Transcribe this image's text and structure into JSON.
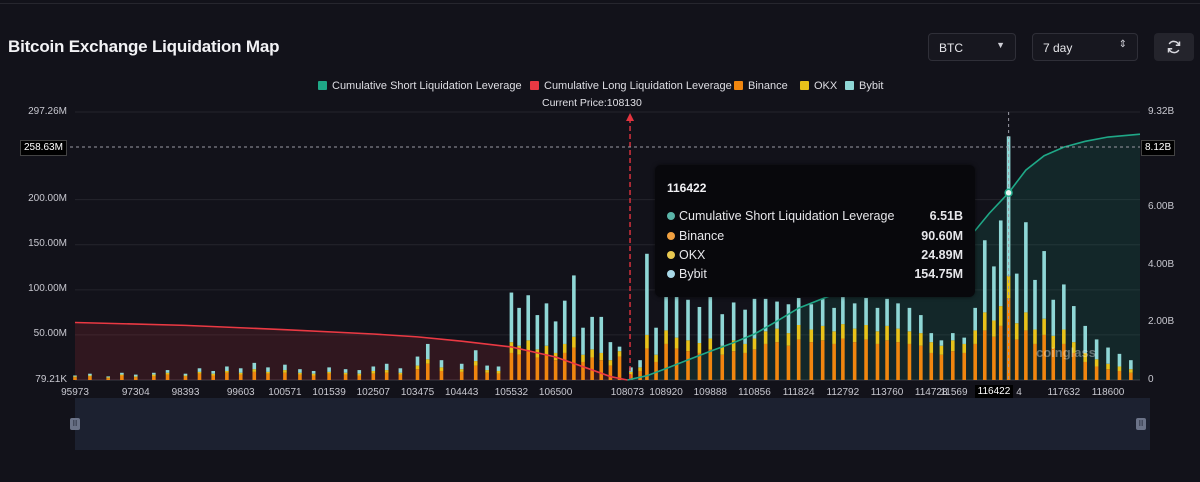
{
  "header": {
    "title": "Bitcoin Exchange Liquidation Map",
    "symbol_select": "BTC",
    "range_select": "7 day"
  },
  "legend": [
    {
      "label": "Cumulative Short Liquidation Leverage",
      "color": "#1fa887"
    },
    {
      "label": "Cumulative Long Liquidation Leverage",
      "color": "#ea3943"
    },
    {
      "label": "Binance",
      "color": "#f0860f"
    },
    {
      "label": "OKX",
      "color": "#e8c21a"
    },
    {
      "label": "Bybit",
      "color": "#8fd7d6"
    }
  ],
  "current_price_label": "Current Price:108130",
  "tooltip": {
    "title": "116422",
    "rows": [
      {
        "label": "Cumulative Short Liquidation Leverage",
        "value": "6.51B",
        "color": "#5ab4a8"
      },
      {
        "label": "Binance",
        "value": "90.60M",
        "color": "#f0a040"
      },
      {
        "label": "OKX",
        "value": "24.89M",
        "color": "#e8c850"
      },
      {
        "label": "Bybit",
        "value": "154.75M",
        "color": "#a8d8e8"
      }
    ]
  },
  "watermark": "coinglass",
  "chart_data": {
    "type": "bar",
    "title": "Bitcoin Exchange Liquidation Map",
    "current_price": 108130,
    "crosshair": {
      "x_label": "116422",
      "y_left": "258.63M",
      "y_right": "8.12B"
    },
    "y_left_ticks": [
      "297.26M",
      "200.00M",
      "150.00M",
      "100.00M",
      "50.00M",
      "79.21K"
    ],
    "y_right_ticks": [
      "9.32B",
      "6.00B",
      "4.00B",
      "2.00B",
      "0"
    ],
    "y_left_range": [
      0,
      297.26
    ],
    "y_right_range": [
      0,
      9.32
    ],
    "x_tick_labels": [
      "95973",
      "97304",
      "98393",
      "99603",
      "100571",
      "101539",
      "102507",
      "103475",
      "104443",
      "105532",
      "106500",
      "108073",
      "108920",
      "109888",
      "110856",
      "111824",
      "112792",
      "113760",
      "114728",
      "11569",
      "116422",
      "4",
      "117632",
      "118600"
    ],
    "x_range": [
      95973,
      119300
    ],
    "cumulative_long": {
      "x": [
        95973,
        98393,
        100571,
        102507,
        103475,
        104443,
        105532,
        106500,
        107300,
        107700,
        108073
      ],
      "values": [
        2.0,
        1.9,
        1.75,
        1.6,
        1.5,
        1.35,
        1.15,
        0.8,
        0.35,
        0.12,
        0
      ]
    },
    "cumulative_short": {
      "x": [
        108073,
        108500,
        108920,
        109400,
        109888,
        110400,
        110856,
        111300,
        111824,
        112300,
        112792,
        113300,
        113760,
        114200,
        114728,
        115200,
        115690,
        116000,
        116422,
        116800,
        117200,
        117632,
        118100,
        118600,
        119300
      ],
      "values": [
        0,
        0.15,
        0.4,
        0.7,
        1.0,
        1.3,
        1.6,
        2.0,
        2.5,
        2.8,
        3.1,
        3.4,
        3.6,
        3.9,
        4.2,
        4.6,
        5.2,
        5.8,
        6.51,
        7.3,
        7.8,
        8.1,
        8.3,
        8.45,
        8.55
      ]
    },
    "bar_series": [
      {
        "name": "Binance",
        "color": "#f0860f"
      },
      {
        "name": "OKX",
        "color": "#e8c21a"
      },
      {
        "name": "Bybit",
        "color": "#8fd7d6"
      }
    ],
    "bars": [
      {
        "x": 95973,
        "binance": 3,
        "okx": 1,
        "bybit": 1
      },
      {
        "x": 96300,
        "binance": 4,
        "okx": 1,
        "bybit": 2
      },
      {
        "x": 96700,
        "binance": 2,
        "okx": 1,
        "bybit": 1
      },
      {
        "x": 97000,
        "binance": 5,
        "okx": 1,
        "bybit": 2
      },
      {
        "x": 97304,
        "binance": 3,
        "okx": 1,
        "bybit": 2
      },
      {
        "x": 97700,
        "binance": 4,
        "okx": 2,
        "bybit": 2
      },
      {
        "x": 98000,
        "binance": 6,
        "okx": 2,
        "bybit": 3
      },
      {
        "x": 98393,
        "binance": 4,
        "okx": 1,
        "bybit": 2
      },
      {
        "x": 98700,
        "binance": 7,
        "okx": 2,
        "bybit": 4
      },
      {
        "x": 99000,
        "binance": 5,
        "okx": 2,
        "bybit": 3
      },
      {
        "x": 99300,
        "binance": 8,
        "okx": 2,
        "bybit": 5
      },
      {
        "x": 99603,
        "binance": 6,
        "okx": 2,
        "bybit": 5
      },
      {
        "x": 99900,
        "binance": 9,
        "okx": 3,
        "bybit": 7
      },
      {
        "x": 100200,
        "binance": 7,
        "okx": 2,
        "bybit": 5
      },
      {
        "x": 100571,
        "binance": 8,
        "okx": 3,
        "bybit": 6
      },
      {
        "x": 100900,
        "binance": 6,
        "okx": 2,
        "bybit": 4
      },
      {
        "x": 101200,
        "binance": 5,
        "okx": 2,
        "bybit": 3
      },
      {
        "x": 101539,
        "binance": 7,
        "okx": 2,
        "bybit": 5
      },
      {
        "x": 101900,
        "binance": 6,
        "okx": 2,
        "bybit": 4
      },
      {
        "x": 102200,
        "binance": 5,
        "okx": 2,
        "bybit": 4
      },
      {
        "x": 102507,
        "binance": 7,
        "okx": 3,
        "bybit": 5
      },
      {
        "x": 102800,
        "binance": 8,
        "okx": 3,
        "bybit": 7
      },
      {
        "x": 103100,
        "binance": 6,
        "okx": 2,
        "bybit": 5
      },
      {
        "x": 103475,
        "binance": 12,
        "okx": 4,
        "bybit": 10
      },
      {
        "x": 103700,
        "binance": 18,
        "okx": 5,
        "bybit": 17
      },
      {
        "x": 104000,
        "binance": 10,
        "okx": 4,
        "bybit": 8
      },
      {
        "x": 104443,
        "binance": 9,
        "okx": 3,
        "bybit": 6
      },
      {
        "x": 104750,
        "binance": 16,
        "okx": 5,
        "bybit": 12
      },
      {
        "x": 105000,
        "binance": 8,
        "okx": 3,
        "bybit": 5
      },
      {
        "x": 105250,
        "binance": 7,
        "okx": 3,
        "bybit": 5
      },
      {
        "x": 105532,
        "binance": 30,
        "okx": 12,
        "bybit": 55
      },
      {
        "x": 105700,
        "binance": 28,
        "okx": 10,
        "bybit": 42
      },
      {
        "x": 105900,
        "binance": 32,
        "okx": 12,
        "bybit": 50
      },
      {
        "x": 106100,
        "binance": 25,
        "okx": 9,
        "bybit": 38
      },
      {
        "x": 106300,
        "binance": 28,
        "okx": 10,
        "bybit": 47
      },
      {
        "x": 106500,
        "binance": 22,
        "okx": 8,
        "bybit": 35
      },
      {
        "x": 106700,
        "binance": 30,
        "okx": 10,
        "bybit": 48
      },
      {
        "x": 106900,
        "binance": 36,
        "okx": 12,
        "bybit": 68
      },
      {
        "x": 107100,
        "binance": 20,
        "okx": 8,
        "bybit": 30
      },
      {
        "x": 107300,
        "binance": 25,
        "okx": 9,
        "bybit": 36
      },
      {
        "x": 107500,
        "binance": 22,
        "okx": 8,
        "bybit": 40
      },
      {
        "x": 107700,
        "binance": 16,
        "okx": 6,
        "bybit": 20
      },
      {
        "x": 107900,
        "binance": 26,
        "okx": 6,
        "bybit": 5
      },
      {
        "x": 108150,
        "binance": 6,
        "okx": 3,
        "bybit": 5
      },
      {
        "x": 108350,
        "binance": 10,
        "okx": 4,
        "bybit": 8
      },
      {
        "x": 108500,
        "binance": 35,
        "okx": 15,
        "bybit": 90
      },
      {
        "x": 108700,
        "binance": 20,
        "okx": 8,
        "bybit": 30
      },
      {
        "x": 108920,
        "binance": 40,
        "okx": 15,
        "bybit": 85
      },
      {
        "x": 109150,
        "binance": 35,
        "okx": 12,
        "bybit": 55
      },
      {
        "x": 109400,
        "binance": 32,
        "okx": 12,
        "bybit": 45
      },
      {
        "x": 109650,
        "binance": 30,
        "okx": 11,
        "bybit": 40
      },
      {
        "x": 109888,
        "binance": 34,
        "okx": 12,
        "bybit": 48
      },
      {
        "x": 110150,
        "binance": 28,
        "okx": 10,
        "bybit": 35
      },
      {
        "x": 110400,
        "binance": 32,
        "okx": 12,
        "bybit": 42
      },
      {
        "x": 110650,
        "binance": 30,
        "okx": 10,
        "bybit": 38
      },
      {
        "x": 110856,
        "binance": 34,
        "okx": 12,
        "bybit": 44
      },
      {
        "x": 111100,
        "binance": 40,
        "okx": 14,
        "bybit": 36
      },
      {
        "x": 111350,
        "binance": 42,
        "okx": 15,
        "bybit": 30
      },
      {
        "x": 111600,
        "binance": 38,
        "okx": 14,
        "bybit": 32
      },
      {
        "x": 111824,
        "binance": 45,
        "okx": 16,
        "bybit": 30
      },
      {
        "x": 112100,
        "binance": 42,
        "okx": 14,
        "bybit": 28
      },
      {
        "x": 112350,
        "binance": 44,
        "okx": 16,
        "bybit": 30
      },
      {
        "x": 112600,
        "binance": 40,
        "okx": 14,
        "bybit": 26
      },
      {
        "x": 112792,
        "binance": 46,
        "okx": 16,
        "bybit": 30
      },
      {
        "x": 113050,
        "binance": 42,
        "okx": 15,
        "bybit": 28
      },
      {
        "x": 113300,
        "binance": 45,
        "okx": 16,
        "bybit": 30
      },
      {
        "x": 113550,
        "binance": 40,
        "okx": 14,
        "bybit": 26
      },
      {
        "x": 113760,
        "binance": 44,
        "okx": 16,
        "bybit": 30
      },
      {
        "x": 114000,
        "binance": 42,
        "okx": 15,
        "bybit": 28
      },
      {
        "x": 114250,
        "binance": 40,
        "okx": 14,
        "bybit": 26
      },
      {
        "x": 114500,
        "binance": 38,
        "okx": 14,
        "bybit": 20
      },
      {
        "x": 114728,
        "binance": 30,
        "okx": 12,
        "bybit": 10
      },
      {
        "x": 114950,
        "binance": 28,
        "okx": 10,
        "bybit": 6
      },
      {
        "x": 115200,
        "binance": 32,
        "okx": 12,
        "bybit": 8
      },
      {
        "x": 115450,
        "binance": 30,
        "okx": 10,
        "bybit": 7
      },
      {
        "x": 115690,
        "binance": 40,
        "okx": 15,
        "bybit": 25
      },
      {
        "x": 115900,
        "binance": 55,
        "okx": 20,
        "bybit": 80
      },
      {
        "x": 116100,
        "binance": 48,
        "okx": 18,
        "bybit": 60
      },
      {
        "x": 116250,
        "binance": 60,
        "okx": 22,
        "bybit": 95
      },
      {
        "x": 116422,
        "binance": 90.6,
        "okx": 24.89,
        "bybit": 154.75
      },
      {
        "x": 116600,
        "binance": 45,
        "okx": 18,
        "bybit": 55
      },
      {
        "x": 116800,
        "binance": 55,
        "okx": 20,
        "bybit": 100
      },
      {
        "x": 117000,
        "binance": 40,
        "okx": 16,
        "bybit": 55
      },
      {
        "x": 117200,
        "binance": 50,
        "okx": 18,
        "bybit": 75
      },
      {
        "x": 117400,
        "binance": 35,
        "okx": 14,
        "bybit": 40
      },
      {
        "x": 117632,
        "binance": 40,
        "okx": 16,
        "bybit": 50
      },
      {
        "x": 117850,
        "binance": 30,
        "okx": 12,
        "bybit": 40
      },
      {
        "x": 118100,
        "binance": 20,
        "okx": 10,
        "bybit": 30
      },
      {
        "x": 118350,
        "binance": 15,
        "okx": 8,
        "bybit": 22
      },
      {
        "x": 118600,
        "binance": 12,
        "okx": 6,
        "bybit": 18
      },
      {
        "x": 118850,
        "binance": 10,
        "okx": 5,
        "bybit": 14
      },
      {
        "x": 119100,
        "binance": 8,
        "okx": 4,
        "bybit": 10
      }
    ]
  }
}
